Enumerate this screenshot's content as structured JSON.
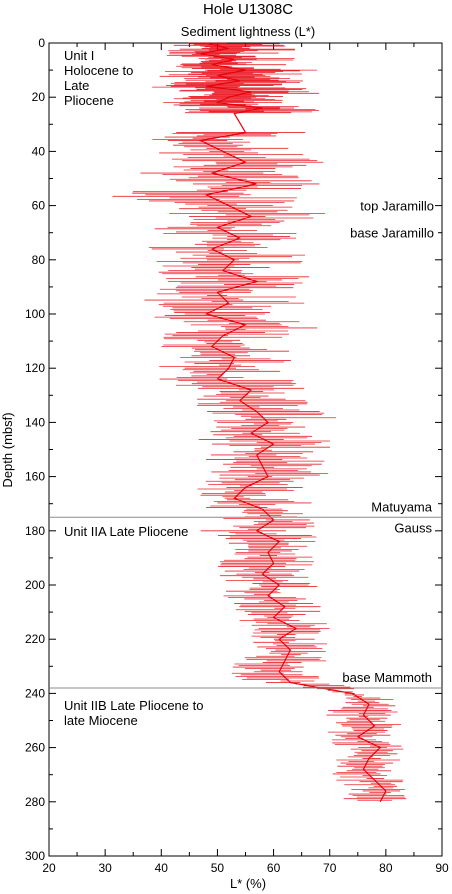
{
  "chart_data": {
    "type": "line",
    "title": "Hole U1308C",
    "subtitle": "Sediment lightness (L*)",
    "xlabel": "L* (%)",
    "ylabel": "Depth (mbsf)",
    "xlim": [
      20,
      90
    ],
    "ylim": [
      0,
      300
    ],
    "y_inverted": true,
    "x_ticks": [
      "20",
      "30",
      "40",
      "50",
      "60",
      "70",
      "80",
      "90"
    ],
    "y_ticks": [
      "0",
      "20",
      "40",
      "60",
      "80",
      "100",
      "120",
      "140",
      "160",
      "180",
      "200",
      "220",
      "240",
      "260",
      "280",
      "300"
    ],
    "grid": false,
    "series_color": "#e8000b",
    "boundaries": [
      {
        "depth": 175,
        "label_above": "Matuyama",
        "label_below": "Gauss"
      },
      {
        "depth": 238,
        "label_above": "base Mammoth",
        "label_below": ""
      }
    ],
    "annotations": [
      {
        "label": "top Jaramillo",
        "depth": 60
      },
      {
        "label": "base Jaramillo",
        "depth": 70
      }
    ],
    "units": [
      {
        "lines": [
          "Unit I",
          "Holocene to",
          "Late",
          "Pliocene"
        ]
      },
      {
        "lines": [
          "Unit IIA Late Pliocene"
        ]
      },
      {
        "lines": [
          "Unit IIB Late Pliocene to",
          "late Miocene"
        ]
      }
    ],
    "series": [
      {
        "depth": [
          0,
          2,
          4,
          6,
          8,
          10,
          12,
          14,
          16,
          18,
          20,
          22,
          24,
          26,
          33,
          36,
          40,
          44,
          48,
          52,
          56,
          60,
          64,
          68,
          72,
          76,
          80,
          84,
          88,
          92,
          96,
          100,
          104,
          108,
          112,
          116,
          120,
          124,
          128,
          132,
          136,
          140,
          144,
          148,
          152,
          156,
          160,
          164,
          168,
          172,
          176,
          180,
          184,
          188,
          192,
          196,
          200,
          204,
          208,
          212,
          216,
          220,
          224,
          228,
          232,
          236,
          240,
          244,
          248,
          252,
          256,
          260,
          264,
          268,
          272,
          276,
          280
        ],
        "lightness": [
          48,
          52,
          47,
          53,
          49,
          55,
          50,
          54,
          48,
          56,
          52,
          50,
          58,
          53,
          55,
          47,
          51,
          55,
          49,
          57,
          48,
          52,
          56,
          50,
          54,
          49,
          53,
          51,
          57,
          50,
          52,
          48,
          55,
          51,
          49,
          53,
          52,
          50,
          56,
          54,
          57,
          59,
          56,
          60,
          57,
          58,
          59,
          55,
          53,
          58,
          60,
          57,
          61,
          59,
          60,
          58,
          61,
          59,
          62,
          60,
          64,
          61,
          63,
          62,
          61,
          63,
          74,
          77,
          76,
          78,
          75,
          79,
          77,
          76,
          78,
          80,
          79
        ],
        "lightness_min": [
          40,
          42,
          38,
          44,
          40,
          41,
          39,
          43,
          38,
          40,
          42,
          39,
          44,
          41,
          38,
          37,
          39,
          40,
          36,
          41,
          29,
          38,
          42,
          38,
          40,
          37,
          39,
          38,
          41,
          39,
          35,
          36,
          40,
          39,
          38,
          37,
          40,
          39,
          44,
          45,
          46,
          48,
          46,
          47,
          45,
          47,
          48,
          46,
          43,
          48,
          49,
          47,
          52,
          51,
          50,
          50,
          52,
          51,
          53,
          52,
          55,
          55,
          56,
          54,
          50,
          56,
          71,
          70,
          69,
          71,
          68,
          72,
          70,
          69,
          71,
          73,
          72
        ],
        "lightness_max": [
          60,
          68,
          62,
          66,
          63,
          70,
          64,
          67,
          62,
          71,
          65,
          63,
          70,
          66,
          68,
          60,
          65,
          69,
          63,
          70,
          64,
          70,
          69,
          62,
          66,
          63,
          68,
          64,
          70,
          64,
          66,
          60,
          70,
          64,
          62,
          66,
          64,
          63,
          69,
          68,
          70,
          72,
          68,
          71,
          69,
          70,
          71,
          67,
          65,
          70,
          69,
          68,
          70,
          67,
          68,
          67,
          69,
          67,
          70,
          68,
          72,
          69,
          71,
          70,
          68,
          70,
          80,
          83,
          82,
          83,
          81,
          84,
          83,
          82,
          84,
          84,
          84
        ]
      }
    ]
  }
}
